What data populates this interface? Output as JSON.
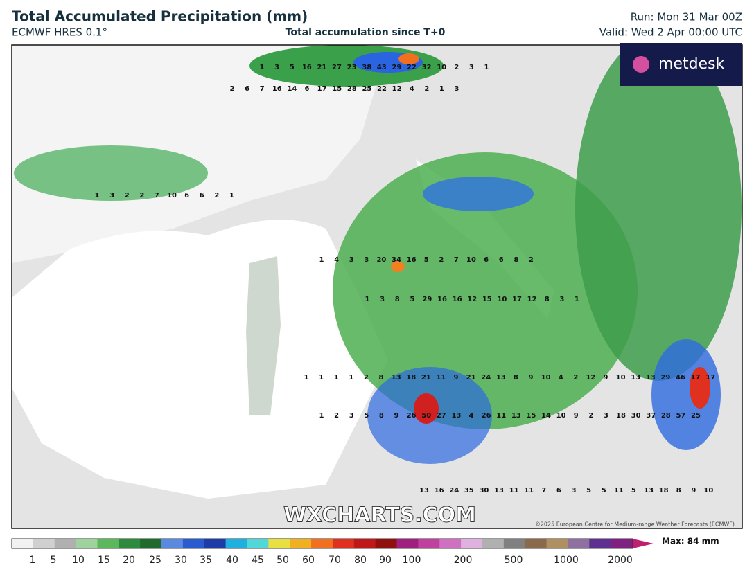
{
  "header": {
    "title": "Total Accumulated Precipitation (mm)",
    "model": "ECMWF HRES 0.1°",
    "subtitle": "Total accumulation since T+0",
    "run": "Run: Mon 31 Mar 00Z",
    "valid": "Valid: Wed 2 Apr 00:00 UTC"
  },
  "logo": "metdesk",
  "watermark": "WXCHARTS.COM",
  "copyright": "©2025 European Centre for Medium-range Weather Forecasts (ECMWF)",
  "map_labels": [
    [
      1,
      3,
      5,
      16,
      21,
      27,
      23,
      38,
      43,
      29,
      22,
      32,
      10,
      2,
      3,
      1
    ],
    [
      2,
      6,
      7,
      16,
      14,
      6,
      17,
      15,
      28,
      25,
      22,
      12,
      4,
      2,
      1,
      3
    ],
    [
      1,
      3,
      2,
      2,
      7,
      10,
      6,
      6,
      2,
      1
    ],
    [
      1,
      4,
      3,
      3,
      20,
      34,
      16,
      5,
      2,
      7,
      10,
      6,
      6,
      8,
      2
    ],
    [
      1,
      3,
      8,
      5,
      29,
      16,
      16,
      12,
      15,
      10,
      17,
      12,
      8,
      3,
      1
    ],
    [
      1,
      1,
      1,
      1,
      2,
      8,
      13,
      18,
      21,
      11,
      9,
      21,
      24,
      13,
      8,
      9,
      10,
      4,
      2,
      12,
      9,
      10,
      13,
      13,
      29,
      46,
      17,
      17
    ],
    [
      1,
      2,
      3,
      5,
      8,
      9,
      26,
      50,
      27,
      13,
      4,
      26,
      11,
      13,
      15,
      14,
      10,
      9,
      2,
      3,
      18,
      30,
      37,
      28,
      57,
      25
    ],
    [
      13,
      16,
      24,
      35,
      30,
      13,
      11,
      11,
      7,
      6,
      3,
      5,
      5,
      11,
      5,
      13,
      18,
      8,
      9,
      10
    ]
  ],
  "colorbar": {
    "labels": [
      1,
      5,
      10,
      15,
      20,
      25,
      30,
      35,
      40,
      45,
      50,
      60,
      70,
      80,
      90,
      100,
      200,
      500,
      1000,
      2000
    ],
    "max": "Max: 84 mm"
  }
}
